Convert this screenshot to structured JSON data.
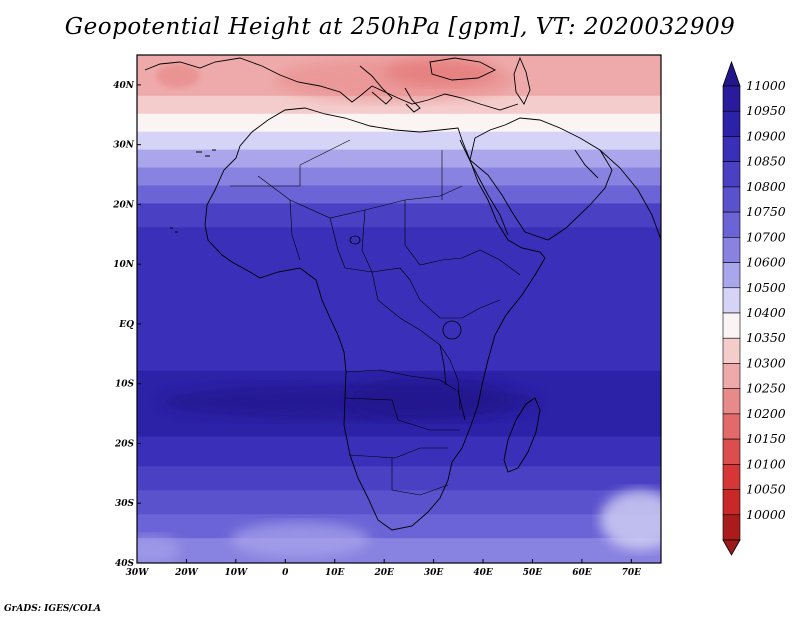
{
  "title": "Geopotential Height at 250hPa [gpm], VT: 2020032909",
  "credit": "GrADS: IGES/COLA",
  "map": {
    "lon_range": [
      -30,
      76
    ],
    "lat_range": [
      -40,
      45
    ],
    "lon_ticks": [
      {
        "value": -30,
        "label": "30W"
      },
      {
        "value": -20,
        "label": "20W"
      },
      {
        "value": -10,
        "label": "10W"
      },
      {
        "value": 0,
        "label": "0"
      },
      {
        "value": 10,
        "label": "10E"
      },
      {
        "value": 20,
        "label": "20E"
      },
      {
        "value": 30,
        "label": "30E"
      },
      {
        "value": 40,
        "label": "40E"
      },
      {
        "value": 50,
        "label": "50E"
      },
      {
        "value": 60,
        "label": "60E"
      },
      {
        "value": 70,
        "label": "70E"
      }
    ],
    "lat_ticks": [
      {
        "value": 40,
        "label": "40N"
      },
      {
        "value": 30,
        "label": "30N"
      },
      {
        "value": 20,
        "label": "20N"
      },
      {
        "value": 10,
        "label": "10N"
      },
      {
        "value": 0,
        "label": "EQ"
      },
      {
        "value": -10,
        "label": "10S"
      },
      {
        "value": -20,
        "label": "20S"
      },
      {
        "value": -30,
        "label": "30S"
      },
      {
        "value": -40,
        "label": "40S"
      }
    ]
  },
  "colorbar": {
    "levels": [
      {
        "label": "11000",
        "color": "#2a1b9c"
      },
      {
        "label": "10950",
        "color": "#2c22a8"
      },
      {
        "label": "10900",
        "color": "#3a2fb8"
      },
      {
        "label": "10850",
        "color": "#4a40c4"
      },
      {
        "label": "10800",
        "color": "#5a52cc"
      },
      {
        "label": "10750",
        "color": "#6a64d6"
      },
      {
        "label": "10700",
        "color": "#8882e0"
      },
      {
        "label": "10600",
        "color": "#aaa6ec"
      },
      {
        "label": "10500",
        "color": "#d6d4f6"
      },
      {
        "label": "10400",
        "color": "#fbf4f4"
      },
      {
        "label": "10350",
        "color": "#f4cccc"
      },
      {
        "label": "10300",
        "color": "#eeaaaa"
      },
      {
        "label": "10250",
        "color": "#e88a8a"
      },
      {
        "label": "10200",
        "color": "#e26a6a"
      },
      {
        "label": "10150",
        "color": "#dc4e4e"
      },
      {
        "label": "10100",
        "color": "#d63636"
      },
      {
        "label": "10050",
        "color": "#c82828"
      },
      {
        "label": "10000",
        "color": "#aa1c1c"
      }
    ],
    "top_arrow_color": "#22168c",
    "bottom_arrow_color": "#9c1a1a"
  },
  "field_bands": [
    {
      "lat_top": 45,
      "lat_bottom": 38,
      "color": "#eeaaaa"
    },
    {
      "lat_top": 38,
      "lat_bottom": 35,
      "color": "#f4cccc"
    },
    {
      "lat_top": 35,
      "lat_bottom": 32,
      "color": "#fbf4f4"
    },
    {
      "lat_top": 32,
      "lat_bottom": 29,
      "color": "#d6d4f6"
    },
    {
      "lat_top": 29,
      "lat_bottom": 26,
      "color": "#aaa6ec"
    },
    {
      "lat_top": 26,
      "lat_bottom": 23,
      "color": "#8882e0"
    },
    {
      "lat_top": 23,
      "lat_bottom": 20,
      "color": "#6a64d6"
    },
    {
      "lat_top": 20,
      "lat_bottom": 16,
      "color": "#4a40c4"
    },
    {
      "lat_top": 16,
      "lat_bottom": -8,
      "color": "#3a2fb8"
    },
    {
      "lat_top": -8,
      "lat_bottom": -19,
      "color": "#2c22a8"
    },
    {
      "lat_top": -19,
      "lat_bottom": -24,
      "color": "#3a2fb8"
    },
    {
      "lat_top": -24,
      "lat_bottom": -28,
      "color": "#4a40c4"
    },
    {
      "lat_top": -28,
      "lat_bottom": -32,
      "color": "#5a52cc"
    },
    {
      "lat_top": -32,
      "lat_bottom": -36,
      "color": "#6a64d6"
    },
    {
      "lat_top": -36,
      "lat_bottom": -40,
      "color": "#8882e0"
    }
  ]
}
